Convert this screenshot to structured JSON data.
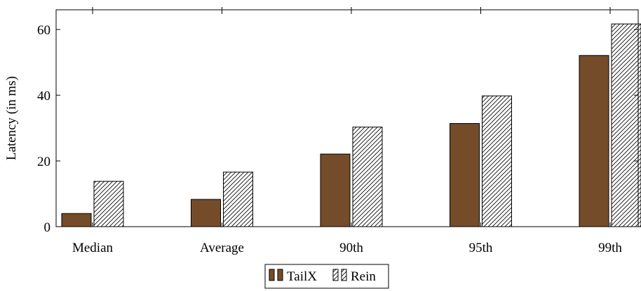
{
  "chart_data": {
    "type": "bar",
    "title": "",
    "xlabel": "",
    "ylabel": "Latency (in ms)",
    "categories": [
      "Median",
      "Average",
      "90th",
      "95th",
      "99th"
    ],
    "series": [
      {
        "name": "TailX",
        "values": [
          4.0,
          8.3,
          22.1,
          31.4,
          52.1
        ],
        "color": "#754c29",
        "pattern": "solid"
      },
      {
        "name": "Rein",
        "values": [
          13.8,
          16.6,
          30.3,
          39.8,
          61.7
        ],
        "color": "#ffffff",
        "pattern": "diagonal-hatch"
      }
    ],
    "ylim": [
      0,
      66
    ],
    "yticks": [
      0,
      20,
      40,
      60
    ],
    "grid": false,
    "legend": "bottom-center"
  }
}
